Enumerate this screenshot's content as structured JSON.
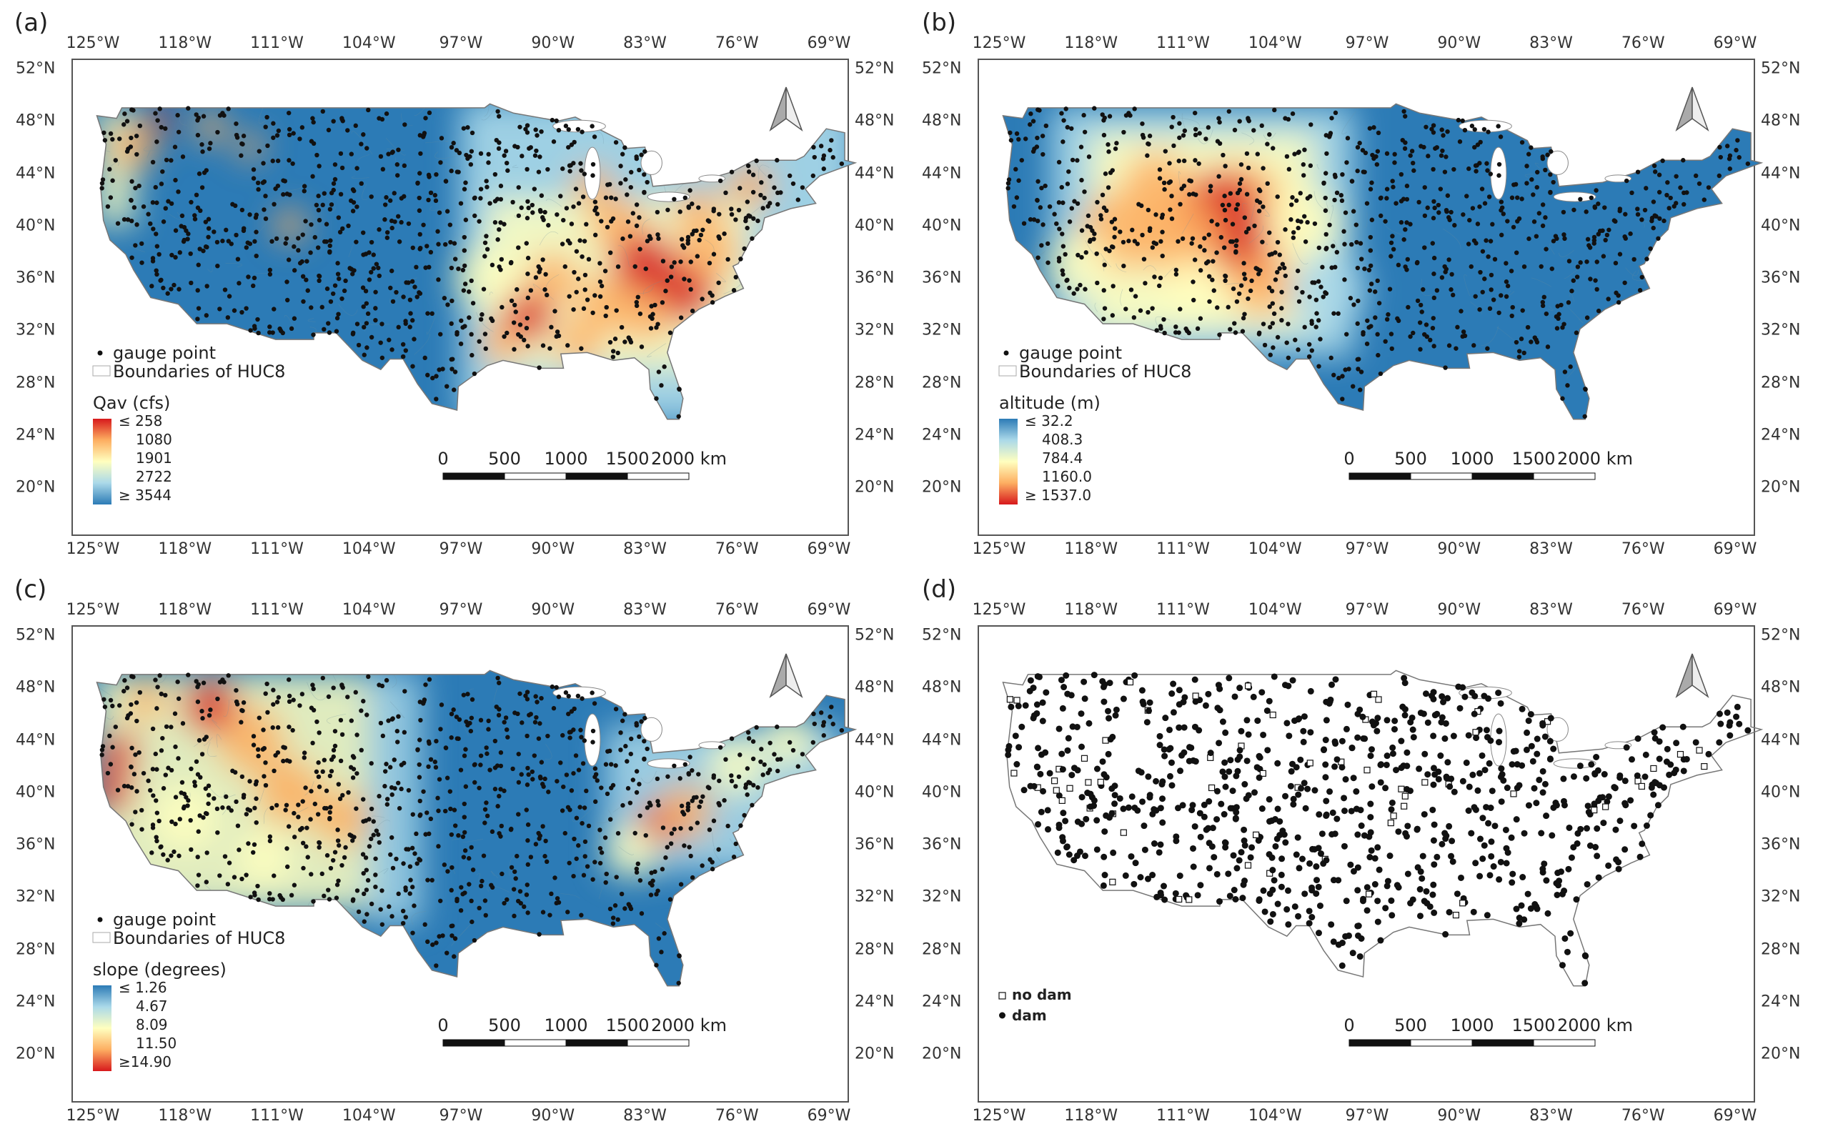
{
  "lon_ticks": [
    "125°W",
    "118°W",
    "111°W",
    "104°W",
    "97°W",
    "90°W",
    "83°W",
    "76°W",
    "69°W"
  ],
  "lat_ticks": [
    "52°N",
    "48°N",
    "44°N",
    "40°N",
    "36°N",
    "32°N",
    "28°N",
    "24°N",
    "20°N"
  ],
  "scale_labels": [
    "0",
    "500",
    "1000",
    "1500",
    "2000 km"
  ],
  "panels": {
    "a": {
      "label": "(a)",
      "legend_point": "gauge point",
      "legend_boundary": "Boundaries of HUC8",
      "ramp_title": "Qav (cfs)",
      "ramp_labels": [
        "≤  258",
        "1080",
        "1901",
        "2722",
        "≥ 3544"
      ],
      "ramp_colors": [
        "#d7191c",
        "#fdae61",
        "#ffffbf",
        "#abd9e9",
        "#2c7bb6"
      ]
    },
    "b": {
      "label": "(b)",
      "legend_point": "gauge point",
      "legend_boundary": "Boundaries of HUC8",
      "ramp_title": "altitude (m)",
      "ramp_labels": [
        "≤   32.2",
        "408.3",
        "784.4",
        "1160.0",
        "≥ 1537.0"
      ],
      "ramp_colors": [
        "#2c7bb6",
        "#abd9e9",
        "#ffffbf",
        "#fdae61",
        "#d7191c"
      ]
    },
    "c": {
      "label": "(c)",
      "legend_point": "gauge point",
      "legend_boundary": "Boundaries of HUC8",
      "ramp_title": "slope (degrees)",
      "ramp_labels": [
        "≤ 1.26",
        "4.67",
        "8.09",
        "11.50",
        "≥14.90"
      ],
      "ramp_colors": [
        "#2c7bb6",
        "#abd9e9",
        "#ffffbf",
        "#fdae61",
        "#d7191c"
      ]
    },
    "d": {
      "label": "(d)",
      "legend_no_dam": "no dam",
      "legend_dam": "dam"
    }
  },
  "colors": {
    "blue": "#2c7bb6",
    "lightblue": "#abd9e9",
    "yellow": "#ffffbf",
    "orange": "#fdae61",
    "red": "#d7191c"
  }
}
